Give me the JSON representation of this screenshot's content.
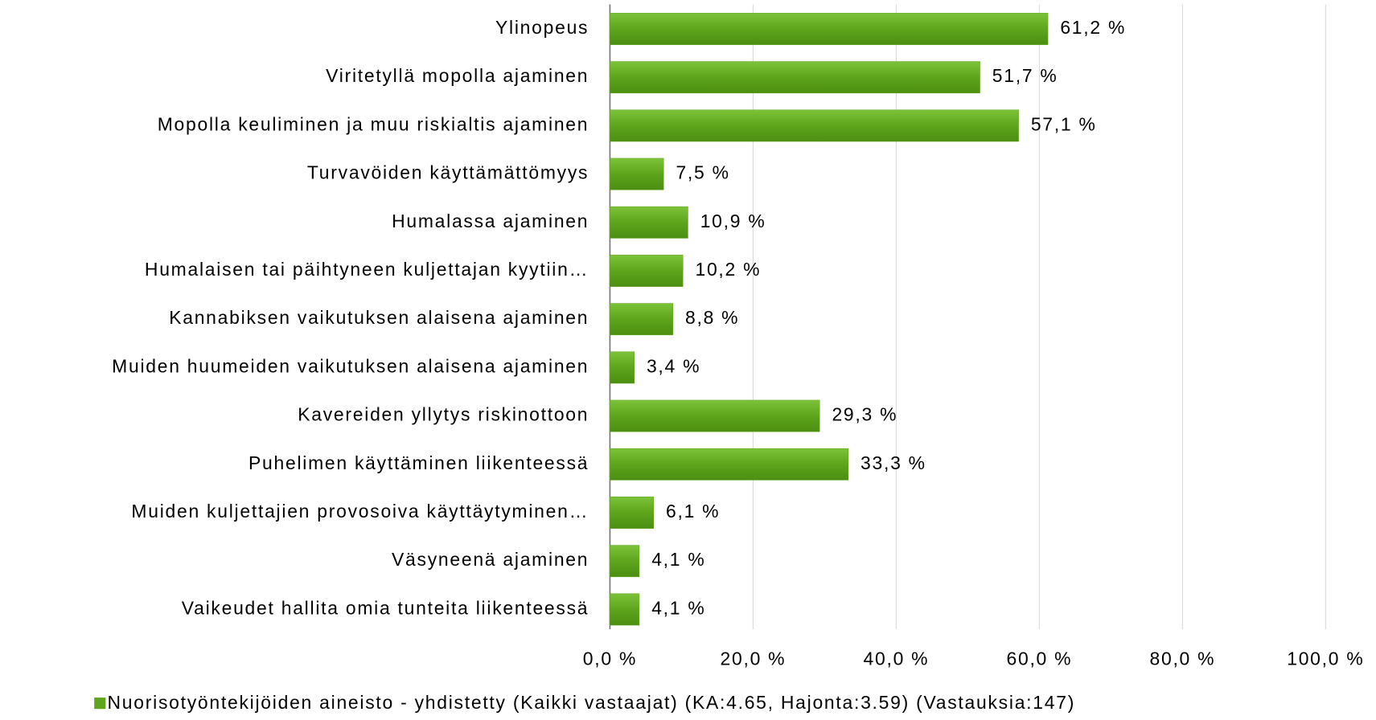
{
  "chart_data": {
    "type": "barh",
    "categories": [
      "Ylinopeus",
      "Viritetyllä mopolla ajaminen",
      "Mopolla keuliminen ja muu riskialtis ajaminen",
      "Turvavöiden käyttämättömyys",
      "Humalassa ajaminen",
      "Humalaisen tai päihtyneen kuljettajan kyytiin…",
      "Kannabiksen vaikutuksen alaisena ajaminen",
      "Muiden huumeiden vaikutuksen alaisena ajaminen",
      "Kavereiden yllytys riskinottoon",
      "Puhelimen käyttäminen liikenteessä",
      "Muiden kuljettajien provosoiva käyttäytyminen…",
      "Väsyneenä ajaminen",
      "Vaikeudet hallita omia tunteita liikenteessä"
    ],
    "series": [
      {
        "name": "Nuorisotyöntekijöiden aineisto - yhdistetty  (Kaikki vastaajat) (KA:4.65, Hajonta:3.59) (Vastauksia:147)",
        "color": "#5ea51c",
        "values": [
          61.2,
          51.7,
          57.1,
          7.5,
          10.9,
          10.2,
          8.8,
          3.4,
          29.3,
          33.3,
          6.1,
          4.1,
          4.1
        ],
        "value_labels": [
          "61,2 %",
          "51,7 %",
          "57,1 %",
          "7,5 %",
          "10,9 %",
          "10,2 %",
          "8,8 %",
          "3,4 %",
          "29,3 %",
          "33,3 %",
          "6,1 %",
          "4,1 %",
          "4,1 %"
        ]
      }
    ],
    "xlim": [
      0,
      100
    ],
    "xticks": [
      {
        "value": 0,
        "label": "0,0 %"
      },
      {
        "value": 20,
        "label": "20,0 %"
      },
      {
        "value": 40,
        "label": "40,0 %"
      },
      {
        "value": 60,
        "label": "60,0 %"
      },
      {
        "value": 80,
        "label": "80,0 %"
      },
      {
        "value": 100,
        "label": "100,0 %"
      }
    ],
    "grid": true,
    "legend": "bottom"
  }
}
